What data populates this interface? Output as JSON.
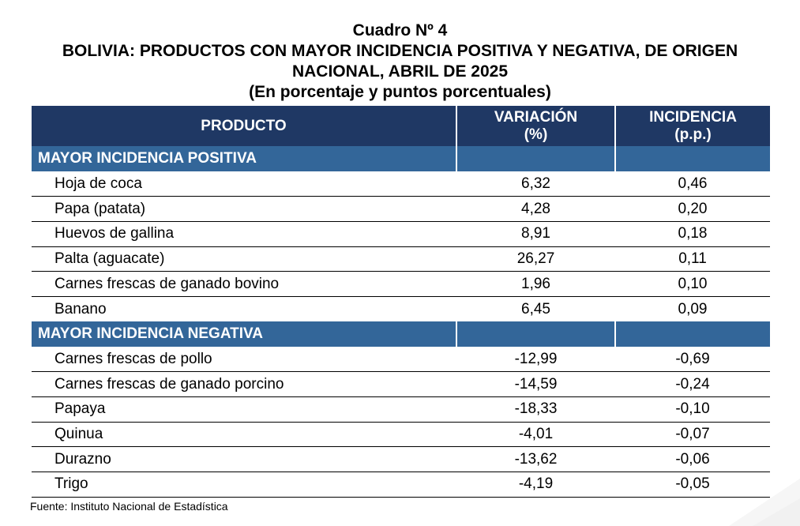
{
  "header": {
    "cuadro": "Cuadro Nº 4",
    "title_line1": "BOLIVIA: PRODUCTOS CON MAYOR INCIDENCIA POSITIVA Y NEGATIVA, DE ORIGEN",
    "title_line2": "NACIONAL, ABRIL DE 2025",
    "subtitle": "(En porcentaje y puntos porcentuales)"
  },
  "table": {
    "columns": {
      "producto": "PRODUCTO",
      "variacion_l1": "VARIACIÓN",
      "variacion_l2": "(%)",
      "incidencia_l1": "INCIDENCIA",
      "incidencia_l2": "(p.p.)"
    },
    "positive_label": "MAYOR INCIDENCIA POSITIVA",
    "positive_rows": [
      {
        "producto": "Hoja de coca",
        "variacion": "6,32",
        "incidencia": "0,46"
      },
      {
        "producto": "Papa (patata)",
        "variacion": "4,28",
        "incidencia": "0,20"
      },
      {
        "producto": "Huevos de gallina",
        "variacion": "8,91",
        "incidencia": "0,18"
      },
      {
        "producto": "Palta (aguacate)",
        "variacion": "26,27",
        "incidencia": "0,11"
      },
      {
        "producto": "Carnes frescas de ganado bovino",
        "variacion": "1,96",
        "incidencia": "0,10"
      },
      {
        "producto": "Banano",
        "variacion": "6,45",
        "incidencia": "0,09"
      }
    ],
    "negative_label": "MAYOR INCIDENCIA NEGATIVA",
    "negative_rows": [
      {
        "producto": "Carnes frescas de pollo",
        "variacion": "-12,99",
        "incidencia": "-0,69"
      },
      {
        "producto": "Carnes frescas de ganado porcino",
        "variacion": "-14,59",
        "incidencia": "-0,24"
      },
      {
        "producto": "Papaya",
        "variacion": "-18,33",
        "incidencia": "-0,10"
      },
      {
        "producto": "Quinua",
        "variacion": "-4,01",
        "incidencia": "-0,07"
      },
      {
        "producto": "Durazno",
        "variacion": "-13,62",
        "incidencia": "-0,06"
      },
      {
        "producto": "Trigo",
        "variacion": "-4,19",
        "incidencia": "-0,05"
      }
    ]
  },
  "footer": {
    "fuente": "Fuente: Instituto Nacional de Estadística"
  },
  "colors": {
    "header_bg": "#1f3864",
    "section_bg": "#336699",
    "header_text": "#ffffff"
  }
}
